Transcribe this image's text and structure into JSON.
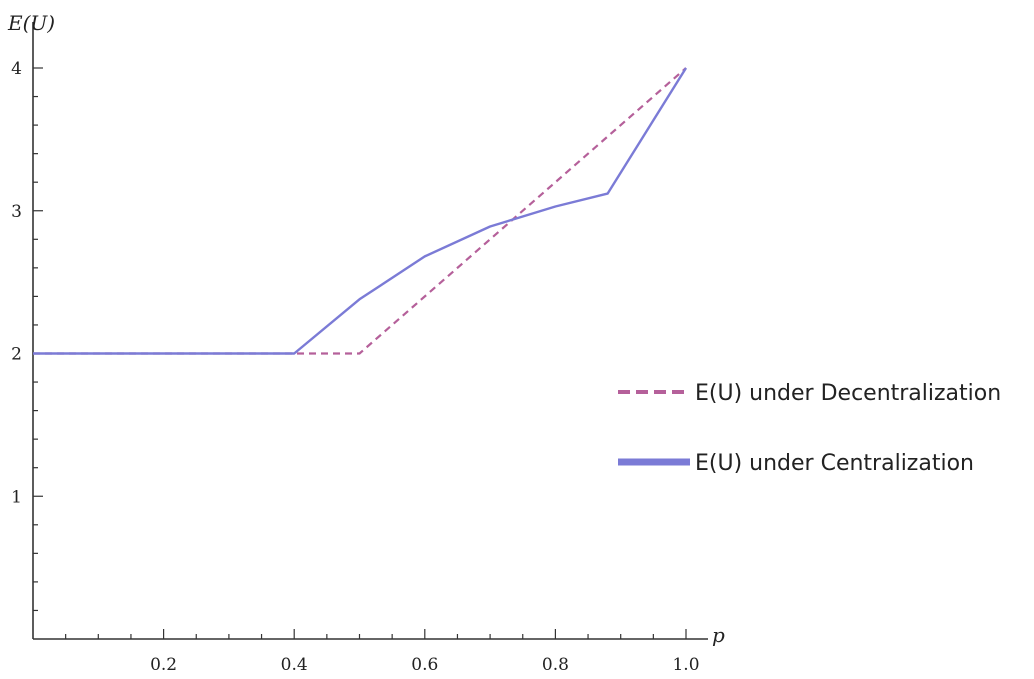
{
  "chart_data": {
    "type": "line",
    "title": "",
    "xlabel": "p",
    "ylabel": "E(U)",
    "xlim": [
      0,
      1.0
    ],
    "ylim": [
      0,
      4
    ],
    "grid": false,
    "legend_position": "right",
    "x_ticks": [
      "0.2",
      "0.4",
      "0.6",
      "0.8",
      "1.0"
    ],
    "y_ticks": [
      "1",
      "2",
      "3",
      "4"
    ],
    "series": [
      {
        "name": "E(U) under Decentralization",
        "style": "dashed",
        "color": "#b5609a",
        "x": [
          0.0,
          0.5,
          1.0
        ],
        "y": [
          2.0,
          2.0,
          4.0
        ]
      },
      {
        "name": "E(U) under Centralization",
        "style": "solid",
        "color": "#7b7bd6",
        "x": [
          0.0,
          0.4,
          0.5,
          0.6,
          0.7,
          0.8,
          0.88,
          1.0
        ],
        "y": [
          2.0,
          2.0,
          2.38,
          2.68,
          2.89,
          3.03,
          3.12,
          4.0
        ]
      }
    ]
  }
}
